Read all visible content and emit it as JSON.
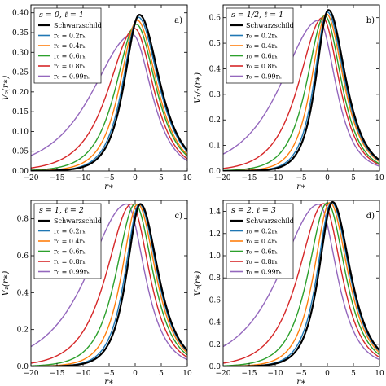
{
  "legend_labels": [
    "Schwarzschild",
    "r₀ = 0.2rₕ",
    "r₀ = 0.4rₕ",
    "r₀ = 0.6rₕ",
    "r₀ = 0.8rₕ",
    "r₀ = 0.99rₕ"
  ],
  "series_colors": [
    "#000000",
    "#1f77b4",
    "#ff7f0e",
    "#2ca02c",
    "#d62728",
    "#9467bd"
  ],
  "chart_data": [
    {
      "type": "line",
      "panel_title": "s = 0, ℓ = 1",
      "panel_tag": "a)",
      "xlabel": "r∗",
      "ylabel": "V₀(r∗)",
      "xlim": [
        -20,
        10
      ],
      "ylim": [
        0,
        0.42
      ],
      "xticks": [
        -20,
        -15,
        -10,
        -5,
        0,
        5,
        10
      ],
      "xtick_labels": [
        "−20",
        "−15",
        "−10",
        "−5",
        "0",
        "5",
        "10"
      ],
      "yticks": [
        0.0,
        0.05,
        0.1,
        0.15,
        0.2,
        0.25,
        0.3,
        0.35,
        0.4
      ],
      "ytick_labels": [
        "0.00",
        "0.05",
        "0.10",
        "0.15",
        "0.20",
        "0.25",
        "0.30",
        "0.35",
        "0.40"
      ],
      "legend_position": "top-left",
      "series": [
        {
          "name": "Schwarzschild",
          "peak_x": 0.8,
          "peak_y": 0.395,
          "left_width": 2.5,
          "right_width": 3.4
        },
        {
          "name": "r₀ = 0.2rₕ",
          "peak_x": 0.6,
          "peak_y": 0.389,
          "left_width": 2.6,
          "right_width": 3.4
        },
        {
          "name": "r₀ = 0.4rₕ",
          "peak_x": 0.4,
          "peak_y": 0.381,
          "left_width": 2.9,
          "right_width": 3.3
        },
        {
          "name": "r₀ = 0.6rₕ",
          "peak_x": 0.2,
          "peak_y": 0.371,
          "left_width": 3.4,
          "right_width": 3.3
        },
        {
          "name": "r₀ = 0.8rₕ",
          "peak_x": -0.1,
          "peak_y": 0.36,
          "left_width": 4.4,
          "right_width": 3.2
        },
        {
          "name": "r₀ = 0.99rₕ",
          "peak_x": -0.5,
          "peak_y": 0.345,
          "left_width": 6.8,
          "right_width": 3.2
        }
      ]
    },
    {
      "type": "line",
      "panel_title": "s = 1/2, ℓ = 1",
      "panel_tag": "b)",
      "xlabel": "r∗",
      "ylabel": "V₁/₂(r∗)",
      "xlim": [
        -20,
        10
      ],
      "ylim": [
        0,
        0.65
      ],
      "xticks": [
        -20,
        -15,
        -10,
        -5,
        0,
        5,
        10
      ],
      "xtick_labels": [
        "−20",
        "−15",
        "−10",
        "−5",
        "0",
        "5",
        "10"
      ],
      "yticks": [
        0.0,
        0.1,
        0.2,
        0.3,
        0.4,
        0.5,
        0.6
      ],
      "ytick_labels": [
        "0.0",
        "0.1",
        "0.2",
        "0.3",
        "0.4",
        "0.5",
        "0.6"
      ],
      "legend_position": "top-left",
      "series": [
        {
          "name": "Schwarzschild",
          "peak_x": 0.2,
          "peak_y": 0.63,
          "left_width": 2.1,
          "right_width": 2.9
        },
        {
          "name": "r₀ = 0.2rₕ",
          "peak_x": 0.0,
          "peak_y": 0.622,
          "left_width": 2.2,
          "right_width": 2.9
        },
        {
          "name": "r₀ = 0.4rₕ",
          "peak_x": -0.2,
          "peak_y": 0.615,
          "left_width": 2.5,
          "right_width": 2.9
        },
        {
          "name": "r₀ = 0.6rₕ",
          "peak_x": -0.5,
          "peak_y": 0.608,
          "left_width": 3.0,
          "right_width": 2.8
        },
        {
          "name": "r₀ = 0.8rₕ",
          "peak_x": -0.9,
          "peak_y": 0.6,
          "left_width": 4.0,
          "right_width": 2.8
        },
        {
          "name": "r₀ = 0.99rₕ",
          "peak_x": -1.6,
          "peak_y": 0.59,
          "left_width": 6.4,
          "right_width": 2.8
        }
      ]
    },
    {
      "type": "line",
      "panel_title": "s = 1, ℓ = 2",
      "panel_tag": "c)",
      "xlabel": "r∗",
      "ylabel": "V₁(r∗)",
      "xlim": [
        -20,
        10
      ],
      "ylim": [
        0,
        0.9
      ],
      "xticks": [
        -20,
        -15,
        -10,
        -5,
        0,
        5,
        10
      ],
      "xtick_labels": [
        "−20",
        "−15",
        "−10",
        "−5",
        "0",
        "5",
        "10"
      ],
      "yticks": [
        0.0,
        0.2,
        0.4,
        0.6,
        0.8
      ],
      "ytick_labels": [
        "0.0",
        "0.2",
        "0.4",
        "0.6",
        "0.8"
      ],
      "legend_position": "top-left",
      "series": [
        {
          "name": "Schwarzschild",
          "peak_x": 1.0,
          "peak_y": 0.88,
          "left_width": 2.3,
          "right_width": 3.0
        },
        {
          "name": "r₀ = 0.2rₕ",
          "peak_x": 0.8,
          "peak_y": 0.88,
          "left_width": 2.4,
          "right_width": 3.0
        },
        {
          "name": "r₀ = 0.4rₕ",
          "peak_x": 0.5,
          "peak_y": 0.88,
          "left_width": 2.7,
          "right_width": 3.0
        },
        {
          "name": "r₀ = 0.6rₕ",
          "peak_x": 0.0,
          "peak_y": 0.88,
          "left_width": 3.2,
          "right_width": 3.0
        },
        {
          "name": "r₀ = 0.8rₕ",
          "peak_x": -0.7,
          "peak_y": 0.88,
          "left_width": 4.2,
          "right_width": 3.0
        },
        {
          "name": "r₀ = 0.99rₕ",
          "peak_x": -1.6,
          "peak_y": 0.88,
          "left_width": 6.6,
          "right_width": 3.0
        }
      ]
    },
    {
      "type": "line",
      "panel_title": "s = 2, ℓ = 3",
      "panel_tag": "d)",
      "xlabel": "r∗",
      "ylabel": "V₂(r∗)",
      "xlim": [
        -20,
        10
      ],
      "ylim": [
        0,
        1.5
      ],
      "xticks": [
        -20,
        -15,
        -10,
        -5,
        0,
        5,
        10
      ],
      "xtick_labels": [
        "−20",
        "−15",
        "−10",
        "−5",
        "0",
        "5",
        "10"
      ],
      "yticks": [
        0.0,
        0.2,
        0.4,
        0.6,
        0.8,
        1.0,
        1.2,
        1.4
      ],
      "ytick_labels": [
        "0.0",
        "0.2",
        "0.4",
        "0.6",
        "0.8",
        "1.0",
        "1.2",
        "1.4"
      ],
      "legend_position": "top-left",
      "series": [
        {
          "name": "Schwarzschild",
          "peak_x": 1.0,
          "peak_y": 1.485,
          "left_width": 2.3,
          "right_width": 3.0
        },
        {
          "name": "r₀ = 0.2rₕ",
          "peak_x": 0.8,
          "peak_y": 1.483,
          "left_width": 2.4,
          "right_width": 3.0
        },
        {
          "name": "r₀ = 0.4rₕ",
          "peak_x": 0.5,
          "peak_y": 1.48,
          "left_width": 2.7,
          "right_width": 3.0
        },
        {
          "name": "r₀ = 0.6rₕ",
          "peak_x": 0.0,
          "peak_y": 1.478,
          "left_width": 3.2,
          "right_width": 3.0
        },
        {
          "name": "r₀ = 0.8rₕ",
          "peak_x": -0.7,
          "peak_y": 1.47,
          "left_width": 4.2,
          "right_width": 3.0
        },
        {
          "name": "r₀ = 0.99rₕ",
          "peak_x": -1.6,
          "peak_y": 1.465,
          "left_width": 6.6,
          "right_width": 3.0
        }
      ]
    }
  ]
}
